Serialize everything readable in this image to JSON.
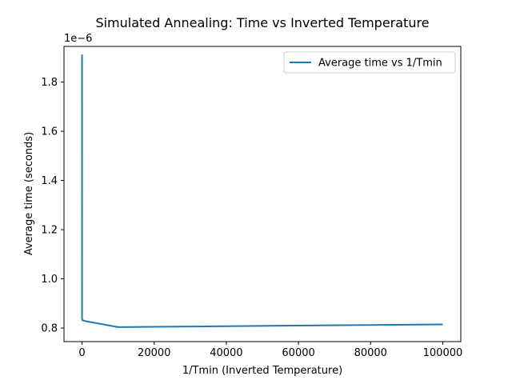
{
  "chart_data": {
    "type": "line",
    "title": "Simulated Annealing: Time vs Inverted Temperature",
    "xlabel": "1/Tmin (Inverted Temperature)",
    "ylabel": "Average time (seconds)",
    "y_offset_text": "1e−6",
    "y_multiplier": 1e-06,
    "xlim": [
      -5000,
      105000
    ],
    "ylim": [
      0.745,
      1.945
    ],
    "xticks": [
      0,
      20000,
      40000,
      60000,
      80000,
      100000
    ],
    "xtick_labels": [
      "0",
      "20000",
      "40000",
      "60000",
      "80000",
      "100000"
    ],
    "yticks": [
      0.8,
      1.0,
      1.2,
      1.4,
      1.6,
      1.8
    ],
    "ytick_labels": [
      "0.8",
      "1.0",
      "1.2",
      "1.4",
      "1.6",
      "1.8"
    ],
    "grid": false,
    "legend_position": "upper right",
    "series": [
      {
        "name": "Average time vs 1/Tmin",
        "color": "#1f77b4",
        "x": [
          1,
          10,
          100,
          1000,
          10000,
          100000
        ],
        "y": [
          1.912,
          0.838,
          0.832,
          0.828,
          0.804,
          0.815
        ]
      }
    ]
  }
}
